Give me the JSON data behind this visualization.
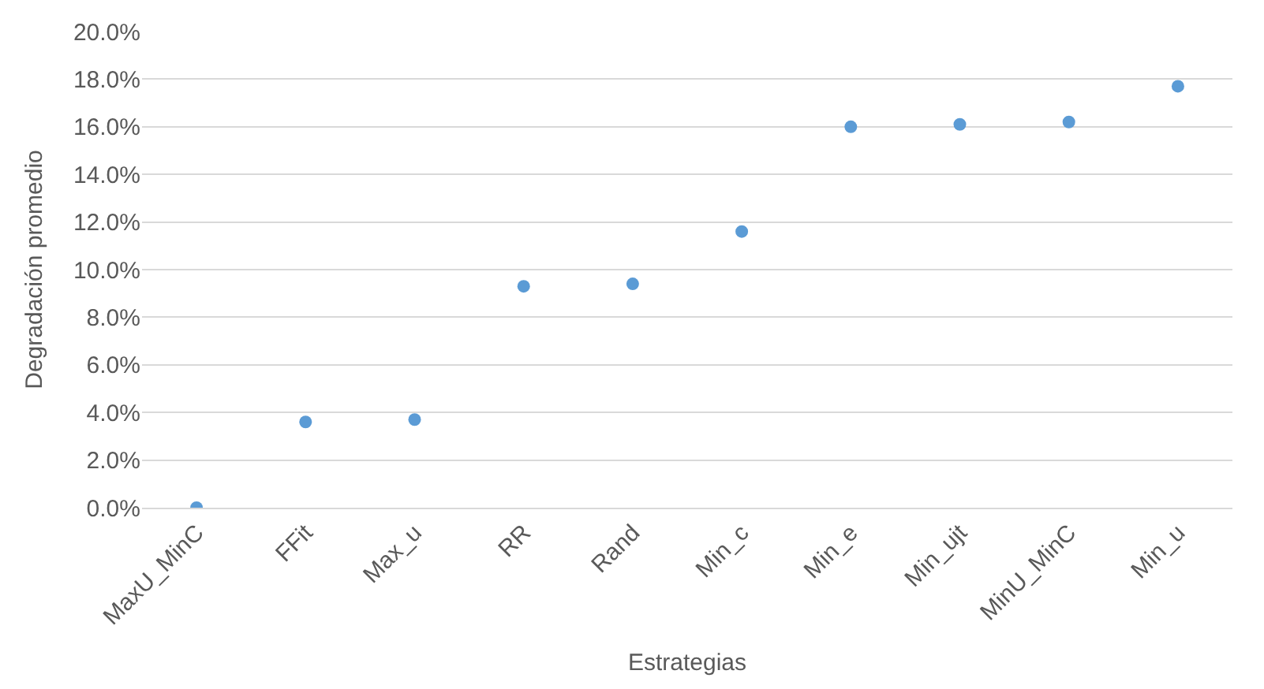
{
  "chart_data": {
    "type": "scatter",
    "xlabel": "Estrategias",
    "ylabel": "Degradación promedio",
    "categories": [
      "MaxU_MinC",
      "FFit",
      "Max_u",
      "RR",
      "Rand",
      "Min_c",
      "Min_e",
      "Min_ujt",
      "MinU_MinC",
      "Min_u"
    ],
    "series": [
      {
        "color": "#5b9bd5",
        "values": [
          0.0,
          3.6,
          3.7,
          9.3,
          9.4,
          11.6,
          16.0,
          16.1,
          16.2,
          17.7
        ]
      }
    ],
    "ylim": [
      0,
      20
    ],
    "yticks": [
      {
        "value": 0,
        "label": "0.0%"
      },
      {
        "value": 2,
        "label": "2.0%"
      },
      {
        "value": 4,
        "label": "4.0%"
      },
      {
        "value": 6,
        "label": "6.0%"
      },
      {
        "value": 8,
        "label": "8.0%"
      },
      {
        "value": 10,
        "label": "10.0%"
      },
      {
        "value": 12,
        "label": "12.0%"
      },
      {
        "value": 14,
        "label": "14.0%"
      },
      {
        "value": 16,
        "label": "16.0%"
      },
      {
        "value": 18,
        "label": "18.0%"
      },
      {
        "value": 20,
        "label": "20.0%"
      }
    ],
    "grid": "y",
    "marker": "circle",
    "legend": false
  }
}
